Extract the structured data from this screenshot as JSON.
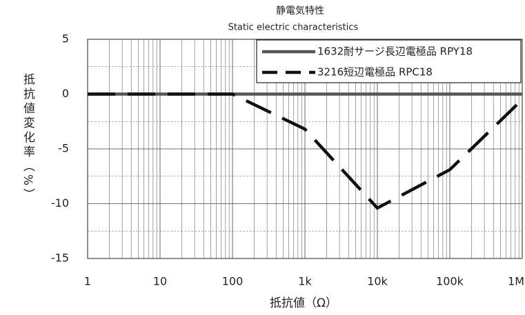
{
  "chart_data": {
    "type": "line",
    "title": "静電気特性",
    "subtitle": "Static electric characteristics",
    "x_label": "抵抗値（Ω）",
    "y_label": "抵抗値変化率（%）",
    "log_x": true,
    "x": [
      1,
      100,
      1000,
      10000,
      100000,
      1000000
    ],
    "series": [
      {
        "name": "1632耐サージ長辺電極品 RPY18",
        "color": "#555555",
        "dash": false,
        "values": [
          0,
          0,
          0,
          0,
          0,
          0
        ]
      },
      {
        "name": "3216短辺電極品 RPC18",
        "color": "#111111",
        "dash": true,
        "values": [
          0,
          0,
          -3.2,
          -10.4,
          -6.9,
          -0.5
        ]
      }
    ],
    "xlim": [
      1,
      1000000
    ],
    "xticks": [
      1,
      10,
      100,
      {
        "value": 1000,
        "label": "1k"
      },
      {
        "value": 10000,
        "label": "10k"
      },
      {
        "value": 100000,
        "label": "100k"
      },
      {
        "value": 1000000,
        "label": "1M"
      }
    ],
    "ylim": [
      -15,
      5
    ],
    "yticks": [
      5,
      0,
      -5,
      -10,
      -15
    ],
    "grid": true,
    "legend": "top-right"
  }
}
